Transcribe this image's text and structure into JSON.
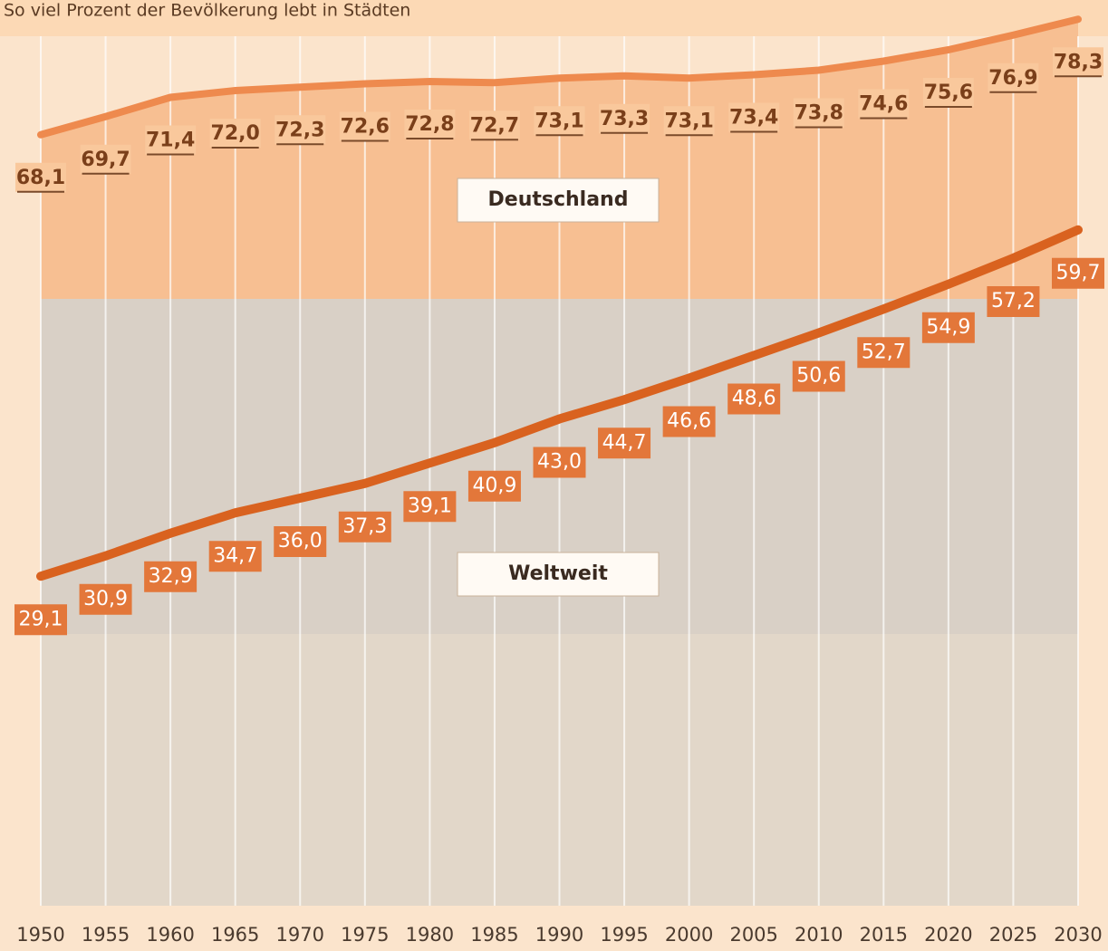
{
  "chart_data": {
    "type": "line",
    "subtitle": "So viel Prozent der Bevölkerung lebt in Städten",
    "categories": [
      "1950",
      "1955",
      "1960",
      "1965",
      "1970",
      "1975",
      "1980",
      "1985",
      "1990",
      "1995",
      "2000",
      "2005",
      "2010",
      "2015",
      "2020",
      "2025",
      "2030"
    ],
    "ylim": [
      0,
      80
    ],
    "series": [
      {
        "name": "Deutschland",
        "color": "#ee8a4e",
        "values": [
          68.1,
          69.7,
          71.4,
          72.0,
          72.3,
          72.6,
          72.8,
          72.7,
          73.1,
          73.3,
          73.1,
          73.4,
          73.8,
          74.6,
          75.6,
          76.9,
          78.3
        ],
        "value_labels": [
          "68,1",
          "69,7",
          "71,4",
          "72,0",
          "72,3",
          "72,6",
          "72,8",
          "72,7",
          "73,1",
          "73,3",
          "73,1",
          "73,4",
          "73,8",
          "74,6",
          "75,6",
          "76,9",
          "78,3"
        ]
      },
      {
        "name": "Weltweit",
        "color": "#d9621f",
        "values": [
          29.1,
          30.9,
          32.9,
          34.7,
          36.0,
          37.3,
          39.1,
          40.9,
          43.0,
          44.7,
          46.6,
          48.6,
          50.6,
          52.7,
          54.9,
          57.2,
          59.7
        ],
        "value_labels": [
          "29,1",
          "30,9",
          "32,9",
          "34,7",
          "36,0",
          "37,3",
          "39,1",
          "40,9",
          "43,0",
          "44,7",
          "46,6",
          "48,6",
          "50,6",
          "52,7",
          "54,9",
          "57,2",
          "59,7"
        ]
      }
    ]
  }
}
